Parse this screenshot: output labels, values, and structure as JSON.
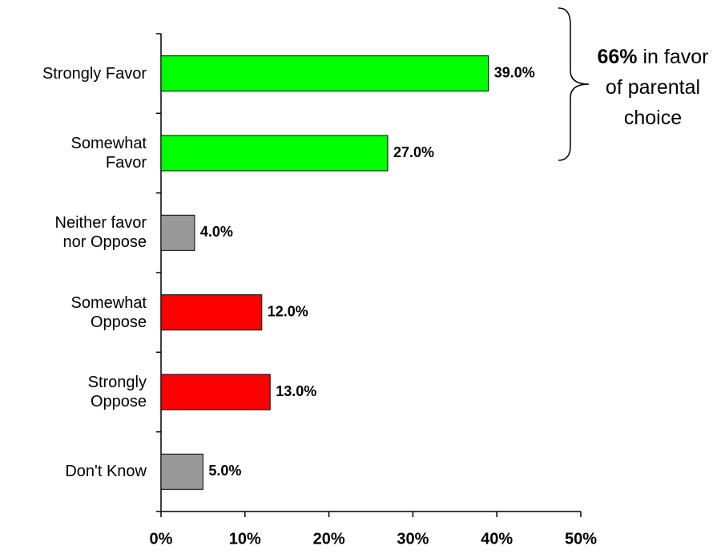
{
  "chart_data": {
    "type": "bar",
    "orientation": "horizontal",
    "categories": [
      "Strongly Favor",
      "Somewhat\nFavor",
      "Neither favor\nnor Oppose",
      "Somewhat\nOppose",
      "Strongly\nOppose",
      "Don't Know"
    ],
    "values": [
      39,
      27,
      4,
      12,
      13,
      5
    ],
    "value_labels": [
      "39.0%",
      "27.0%",
      "4.0%",
      "12.0%",
      "13.0%",
      "5.0%"
    ],
    "colors": [
      "#00ff00",
      "#00ff00",
      "#999999",
      "#ff0000",
      "#ff0000",
      "#999999"
    ],
    "xlim": [
      0,
      50
    ],
    "xticks": [
      {
        "value": 0,
        "label": "0%"
      },
      {
        "value": 10,
        "label": "10%"
      },
      {
        "value": 20,
        "label": "20%"
      },
      {
        "value": 30,
        "label": "30%"
      },
      {
        "value": 40,
        "label": "40%"
      },
      {
        "value": 50,
        "label": "50%"
      }
    ],
    "annotation": {
      "emphasis": "66%",
      "text": "in favor of parental choice"
    }
  }
}
